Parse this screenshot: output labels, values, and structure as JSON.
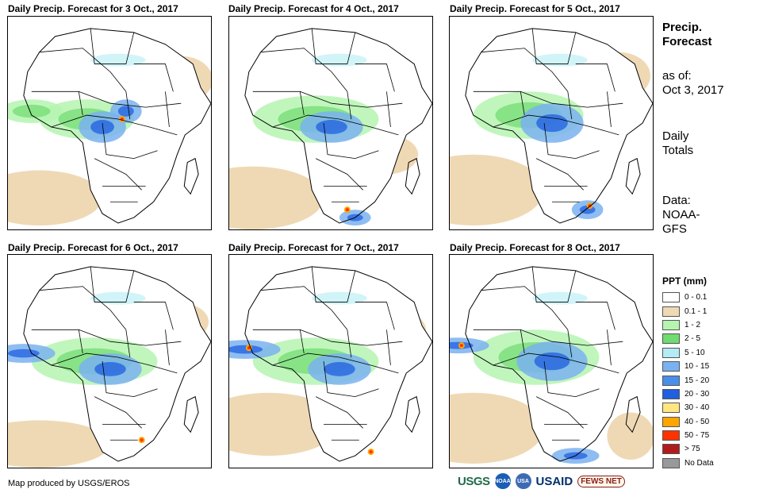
{
  "panels": [
    {
      "title": "Daily Precip. Forecast for 3 Oct., 2017"
    },
    {
      "title": "Daily Precip. Forecast for 4 Oct., 2017"
    },
    {
      "title": "Daily Precip. Forecast for 5 Oct., 2017"
    },
    {
      "title": "Daily Precip. Forecast for 6 Oct., 2017"
    },
    {
      "title": "Daily Precip. Forecast for 7 Oct., 2017"
    },
    {
      "title": "Daily Precip. Forecast for 8 Oct., 2017"
    }
  ],
  "side": {
    "title_line1": "Precip.",
    "title_line2": "Forecast",
    "asof_label": "as of:",
    "asof_date": "Oct 3, 2017",
    "totals_line1": "Daily",
    "totals_line2": "Totals",
    "data_line1": "Data:",
    "data_line2": "NOAA-",
    "data_line3": "GFS"
  },
  "legend": {
    "title": "PPT (mm)",
    "items": [
      {
        "label": "0 - 0.1",
        "color": "#ffffff"
      },
      {
        "label": "0.1 - 1",
        "color": "#efd9b5"
      },
      {
        "label": "1 - 2",
        "color": "#b5f5b0"
      },
      {
        "label": "2 - 5",
        "color": "#6fdc6f"
      },
      {
        "label": "5 - 10",
        "color": "#b3ecf5"
      },
      {
        "label": "10 - 15",
        "color": "#7ab2f0"
      },
      {
        "label": "15 - 20",
        "color": "#4a8ee8"
      },
      {
        "label": "20 - 30",
        "color": "#1f5fe0"
      },
      {
        "label": "30 - 40",
        "color": "#ffe680"
      },
      {
        "label": "40 - 50",
        "color": "#ffa500"
      },
      {
        "label": "50 - 75",
        "color": "#ff3300"
      },
      {
        "label": "> 75",
        "color": "#b01c1c"
      },
      {
        "label": "No Data",
        "color": "#999999"
      }
    ]
  },
  "credit": "Map produced by USGS/EROS",
  "logos": {
    "usgs": "USGS",
    "noaa": "NOAA",
    "seal": "USA",
    "usaid": "USAID",
    "fews": "FEWS NET"
  }
}
